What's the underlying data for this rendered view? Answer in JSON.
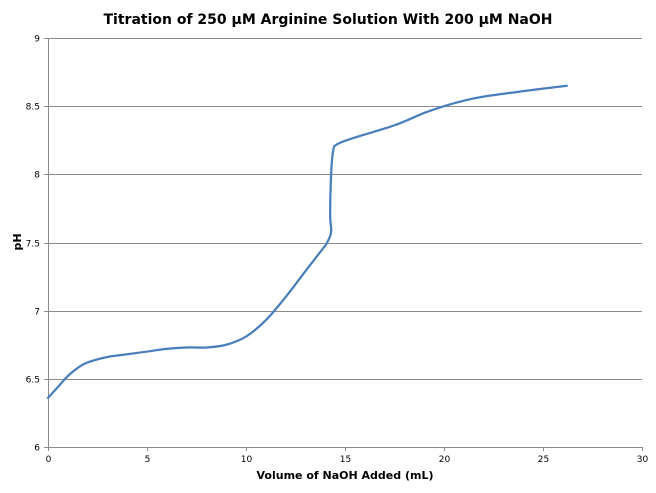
{
  "chart_data": {
    "type": "line",
    "title": "Titration of 250 µM Arginine Solution With 200 µM NaOH",
    "xlabel": "Volume of NaOH Added (mL)",
    "ylabel": "pH",
    "xlim": [
      0,
      30
    ],
    "ylim": [
      6,
      9
    ],
    "xticks": [
      0,
      5,
      10,
      15,
      20,
      25,
      30
    ],
    "yticks": [
      6,
      6.5,
      7,
      7.5,
      8,
      8.5,
      9
    ],
    "ytick_labels": [
      "6",
      "6.5",
      "7",
      "7.5",
      "8",
      "8.5",
      "9"
    ],
    "grid": true,
    "legend": "none",
    "series": [
      {
        "color": "#4a7ebb",
        "x": [
          0,
          0.5,
          1,
          1.5,
          2,
          3,
          4,
          5,
          6,
          7,
          8,
          9,
          10,
          11,
          12,
          13,
          13.8,
          14.1,
          14.3,
          14.25,
          14.3,
          14.4,
          14.6,
          15.5,
          17.5,
          19,
          20,
          21,
          22,
          24,
          26.2
        ],
        "y": [
          6.36,
          6.44,
          6.52,
          6.58,
          6.62,
          6.66,
          6.68,
          6.7,
          6.72,
          6.73,
          6.73,
          6.75,
          6.81,
          6.93,
          7.1,
          7.29,
          7.44,
          7.5,
          7.58,
          7.7,
          8.0,
          8.17,
          8.22,
          8.27,
          8.36,
          8.45,
          8.5,
          8.54,
          8.57,
          8.61,
          8.65
        ]
      }
    ]
  }
}
